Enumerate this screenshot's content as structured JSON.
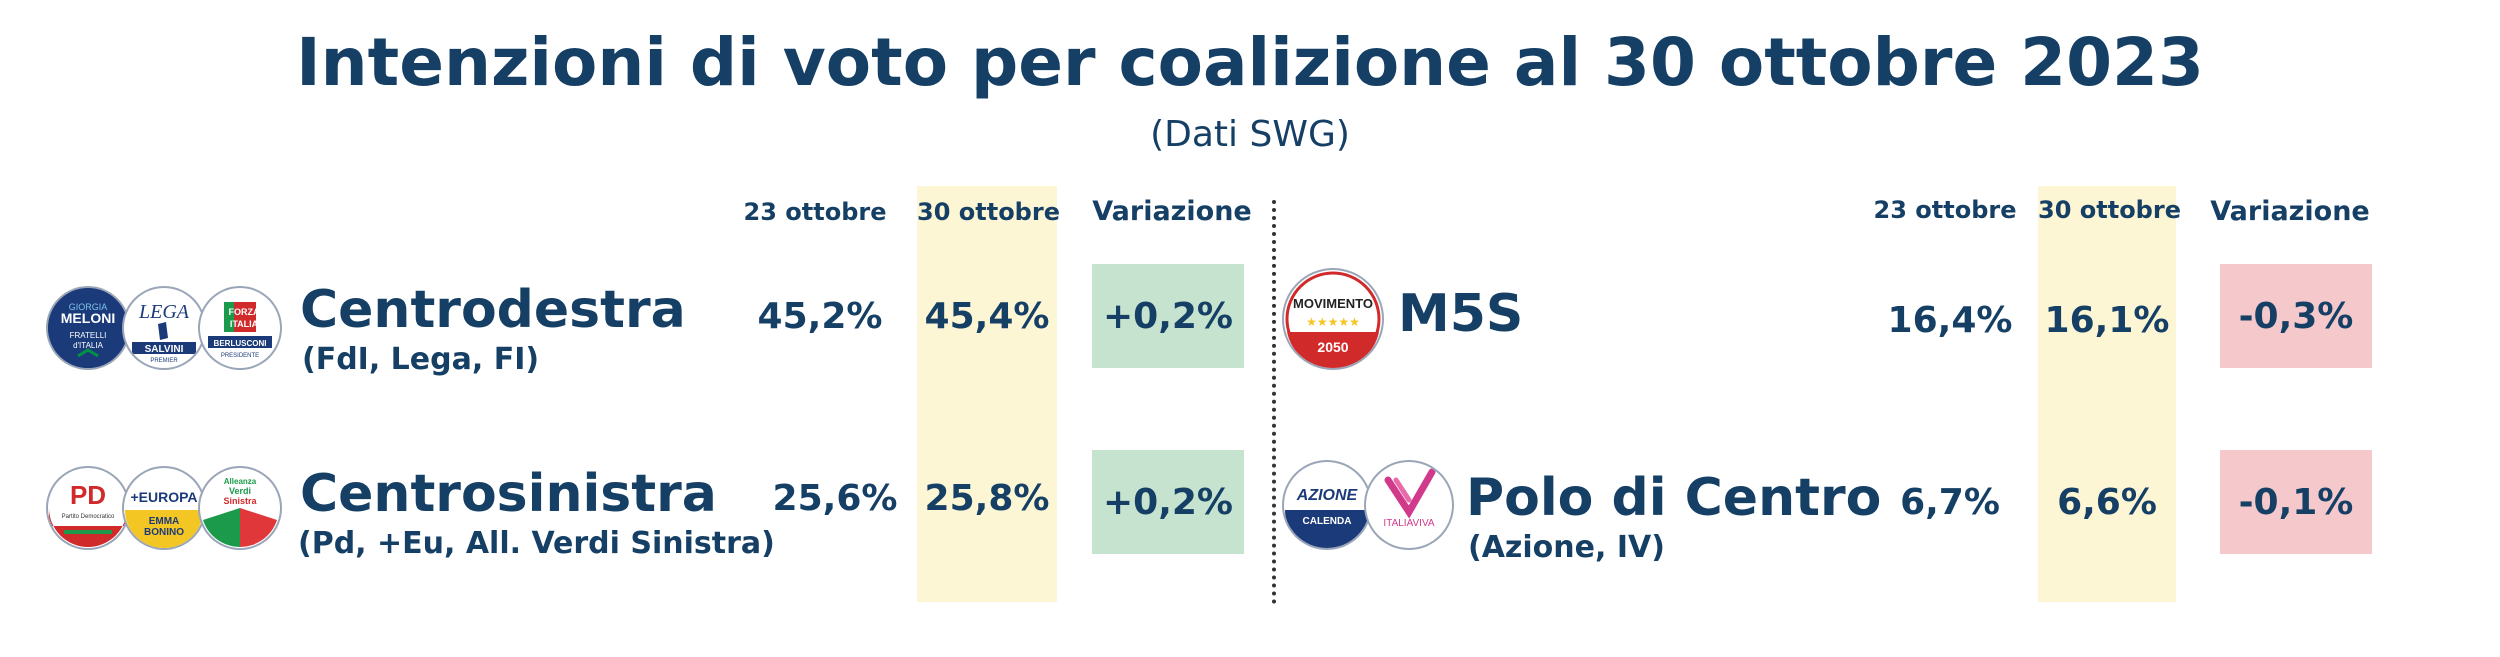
{
  "title": "Intenzioni di voto per coalizione al 30 ottobre 2023",
  "subtitle": "(Dati SWG)",
  "columns": {
    "prev": "23 ottobre",
    "curr": "30 ottobre",
    "var": "Variazione"
  },
  "colors": {
    "positive": "#c5e3cf",
    "negative": "#f5c9cc",
    "highlight": "#fdf6d5",
    "text": "#153f64"
  },
  "chart_data": {
    "type": "table",
    "title": "Intenzioni di voto per coalizione al 30 ottobre 2023",
    "columns": [
      "23 ottobre",
      "30 ottobre",
      "Variazione"
    ],
    "rows": [
      {
        "name": "Centrodestra",
        "members": "(FdI, Lega, FI)",
        "prev": "45,2%",
        "curr": "45,4%",
        "var": "+0,2%",
        "prev_value": 45.2,
        "curr_value": 45.4,
        "change": 0.2
      },
      {
        "name": "Centrosinistra",
        "members": "(Pd, +Eu, All. Verdi Sinistra)",
        "prev": "25,6%",
        "curr": "25,8%",
        "var": "+0,2%",
        "prev_value": 25.6,
        "curr_value": 25.8,
        "change": 0.2
      },
      {
        "name": "M5S",
        "members": "",
        "prev": "16,4%",
        "curr": "16,1%",
        "var": "-0,3%",
        "prev_value": 16.4,
        "curr_value": 16.1,
        "change": -0.3
      },
      {
        "name": "Polo di Centro",
        "members": "(Azione, IV)",
        "prev": "6,7%",
        "curr": "6,6%",
        "var": "-0,1%",
        "prev_value": 6.7,
        "curr_value": 6.6,
        "change": -0.1
      }
    ]
  },
  "logos": {
    "fdi": {
      "icon": "fdi-logo",
      "line1": "GIORGIA",
      "line2": "MELONI",
      "line3": "FRATELLI",
      "line4": "d'ITALIA"
    },
    "lega": {
      "icon": "lega-logo",
      "line1": "LEGA",
      "line2": "SALVINI",
      "line3": "PREMIER"
    },
    "fi": {
      "icon": "forza-italia-logo",
      "line1": "FORZA",
      "line2": "ITALIA",
      "line3": "BERLUSCONI",
      "line4": "PRESIDENTE"
    },
    "pd": {
      "icon": "pd-logo",
      "line1": "PD",
      "line2": "Partito Democratico"
    },
    "eu": {
      "icon": "piu-europa-logo",
      "line1": "+EUROPA",
      "line2": "EMMA",
      "line3": "BONINO"
    },
    "avs": {
      "icon": "avs-logo",
      "line1": "Alleanza",
      "line2": "Verdi",
      "line3": "Sinistra"
    },
    "m5s": {
      "icon": "m5s-logo",
      "line1": "MOVIMENTO",
      "line2": "2050"
    },
    "azione": {
      "icon": "azione-logo",
      "line1": "AZIONE",
      "line2": "CALENDA"
    },
    "iv": {
      "icon": "italia-viva-logo",
      "line1": "ITALIAVIVA"
    }
  }
}
